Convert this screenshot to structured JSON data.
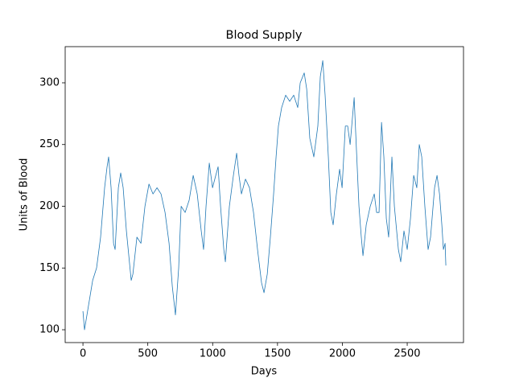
{
  "chart_data": {
    "type": "line",
    "title": "Blood Supply",
    "x_label": "Days",
    "y_label": "Units of Blood",
    "x": [
      0,
      12,
      75,
      105,
      136,
      167,
      186,
      198,
      217,
      236,
      248,
      273,
      291,
      310,
      335,
      372,
      385,
      416,
      447,
      478,
      509,
      540,
      571,
      602,
      633,
      664,
      689,
      713,
      738,
      757,
      788,
      819,
      850,
      881,
      912,
      930,
      949,
      974,
      999,
      1024,
      1042,
      1061,
      1086,
      1098,
      1129,
      1160,
      1185,
      1203,
      1222,
      1253,
      1284,
      1315,
      1346,
      1377,
      1396,
      1421,
      1445,
      1470,
      1489,
      1507,
      1532,
      1563,
      1594,
      1625,
      1656,
      1675,
      1706,
      1725,
      1749,
      1780,
      1811,
      1830,
      1849,
      1867,
      1892,
      1911,
      1929,
      1954,
      1979,
      1998,
      2023,
      2041,
      2060,
      2091,
      2109,
      2128,
      2146,
      2159,
      2184,
      2215,
      2246,
      2264,
      2283,
      2302,
      2320,
      2339,
      2357,
      2382,
      2401,
      2432,
      2450,
      2475,
      2500,
      2525,
      2550,
      2574,
      2593,
      2612,
      2636,
      2661,
      2680,
      2711,
      2730,
      2749,
      2767,
      2779,
      2792,
      2798
    ],
    "series": [
      {
        "color": "#1f77b4",
        "values": [
          115,
          100,
          140,
          150,
          175,
          215,
          232,
          240,
          215,
          170,
          165,
          215,
          227,
          215,
          180,
          140,
          145,
          175,
          170,
          200,
          218,
          210,
          215,
          210,
          195,
          170,
          135,
          112,
          150,
          200,
          195,
          205,
          225,
          210,
          180,
          165,
          200,
          235,
          215,
          225,
          232,
          200,
          165,
          155,
          200,
          225,
          243,
          225,
          210,
          222,
          215,
          195,
          165,
          138,
          130,
          145,
          175,
          210,
          240,
          265,
          280,
          290,
          285,
          290,
          280,
          300,
          308,
          295,
          255,
          240,
          265,
          305,
          318,
          290,
          240,
          195,
          185,
          210,
          230,
          215,
          265,
          265,
          250,
          288,
          245,
          200,
          175,
          160,
          185,
          200,
          210,
          195,
          195,
          268,
          240,
          190,
          175,
          240,
          200,
          165,
          155,
          180,
          165,
          190,
          225,
          215,
          250,
          240,
          200,
          165,
          175,
          215,
          225,
          210,
          185,
          165,
          170,
          152
        ]
      }
    ],
    "xlim": [
      -137,
      2934
    ],
    "xticks": [
      0,
      500,
      1000,
      1500,
      2000,
      2500
    ],
    "ylim": [
      89.6,
      329.3
    ],
    "yticks": [
      100,
      150,
      200,
      250,
      300
    ]
  }
}
